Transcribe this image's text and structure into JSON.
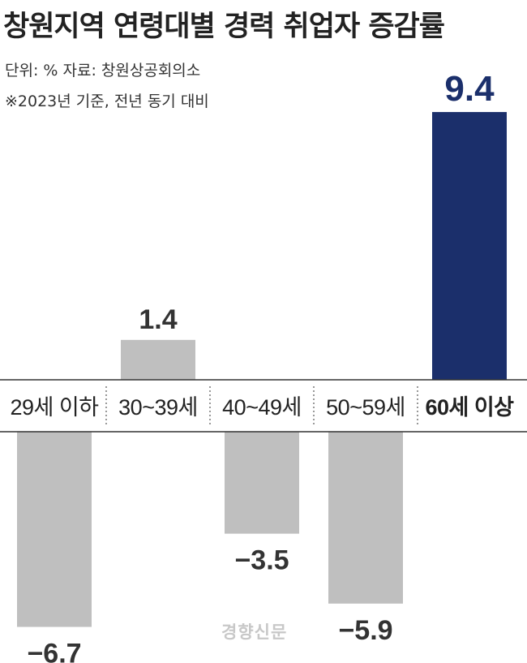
{
  "title": "창원지역 연령대별 경력 취업자 증감률",
  "unit_note": "단위: % 자료: 창원상공회의소",
  "basis_note": "※2023년 기준, 전년 동기 대비",
  "watermark": "경향신문",
  "colors": {
    "bar": "#bfbfbf",
    "highlight": "#1b2f6b",
    "label": "#333333",
    "highlight_label": "#1b2f6b"
  },
  "chart_data": {
    "type": "bar",
    "title": "창원지역 연령대별 경력 취업자 증감률",
    "categories": [
      "29세 이하",
      "30~39세",
      "40~49세",
      "50~59세",
      "60세 이상"
    ],
    "values": [
      -6.7,
      1.4,
      -3.5,
      -5.9,
      9.4
    ],
    "value_labels": [
      "−6.7",
      "1.4",
      "−3.5",
      "−5.9",
      "9.4"
    ],
    "highlight_index": 4,
    "unit": "%",
    "ylim": [
      -6.7,
      9.4
    ],
    "grid": false,
    "legend": "none"
  }
}
